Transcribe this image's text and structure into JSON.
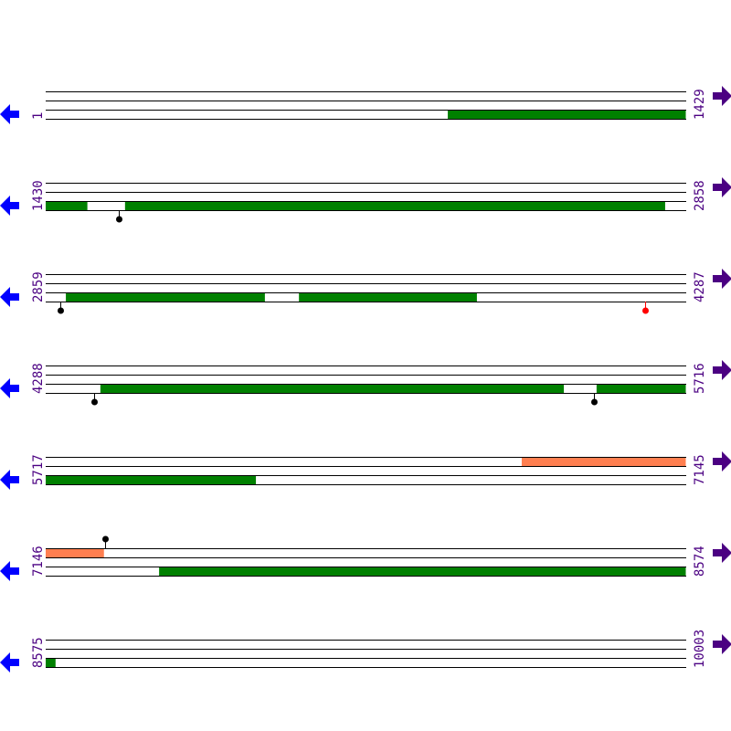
{
  "colors": {
    "orf_green": "#008000",
    "orf_salmon": "#ff7f50",
    "arrow_left": "#0000ff",
    "arrow_right": "#4b0082",
    "label": "#4b0082",
    "marker_black": "#000000",
    "marker_red": "#ff0000",
    "stem": "#ff0000"
  },
  "icons": {
    "left": "arrow-left-icon",
    "right": "arrow-right-icon"
  },
  "rows": [
    {
      "start": "1",
      "end": "1429",
      "features": [
        {
          "frame": 3,
          "from": 898,
          "to": 1429,
          "color": "green"
        }
      ],
      "markers": []
    },
    {
      "start": "1430",
      "end": "2858",
      "features": [
        {
          "frame": 3,
          "from": 1430,
          "to": 1523,
          "color": "green"
        },
        {
          "frame": 3,
          "from": 1607,
          "to": 2812,
          "color": "green"
        }
      ],
      "markers": [
        {
          "pos": 1593,
          "color": "black",
          "side": "below"
        }
      ]
    },
    {
      "start": "2859",
      "end": "4287",
      "features": [
        {
          "frame": 3,
          "from": 2904,
          "to": 3348,
          "color": "green"
        },
        {
          "frame": 3,
          "from": 3424,
          "to": 3821,
          "color": "green"
        }
      ],
      "markers": [
        {
          "pos": 2892,
          "color": "black",
          "side": "below"
        },
        {
          "pos": 4196,
          "color": "red",
          "side": "below"
        }
      ]
    },
    {
      "start": "4288",
      "end": "5716",
      "features": [
        {
          "frame": 3,
          "from": 4410,
          "to": 5444,
          "color": "green"
        },
        {
          "frame": 3,
          "from": 5517,
          "to": 5716,
          "color": "green"
        }
      ],
      "markers": [
        {
          "pos": 4396,
          "color": "black",
          "side": "below"
        },
        {
          "pos": 5511,
          "color": "black",
          "side": "below"
        }
      ]
    },
    {
      "start": "5717",
      "end": "7145",
      "features": [
        {
          "frame": 1,
          "from": 6779,
          "to": 7145,
          "color": "salmon"
        },
        {
          "frame": 3,
          "from": 5717,
          "to": 6186,
          "color": "green"
        }
      ],
      "markers": []
    },
    {
      "start": "7146",
      "end": "8574",
      "features": [
        {
          "frame": 1,
          "from": 7146,
          "to": 7276,
          "color": "salmon"
        },
        {
          "frame": 3,
          "from": 7399,
          "to": 8574,
          "color": "green"
        }
      ],
      "markers": [
        {
          "pos": 7278,
          "color": "black",
          "side": "above"
        }
      ]
    },
    {
      "start": "8575",
      "end": "10003",
      "features": [
        {
          "frame": 3,
          "from": 8575,
          "to": 8597,
          "color": "green"
        }
      ],
      "markers": []
    }
  ]
}
